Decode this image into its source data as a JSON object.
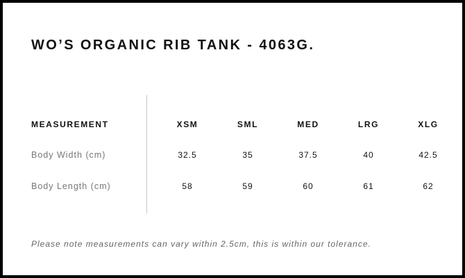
{
  "title": "WO’S ORGANIC RIB TANK - 4063G.",
  "table": {
    "header_label": "MEASUREMENT",
    "sizes": [
      "XSM",
      "SML",
      "MED",
      "LRG",
      "XLG"
    ],
    "rows": [
      {
        "label": "Body Width (cm)",
        "values": [
          "32.5",
          "35",
          "37.5",
          "40",
          "42.5"
        ]
      },
      {
        "label": "Body Length (cm)",
        "values": [
          "58",
          "59",
          "60",
          "61",
          "62"
        ]
      }
    ]
  },
  "note": "Please note measurements can vary within 2.5cm, this is within our tolerance."
}
